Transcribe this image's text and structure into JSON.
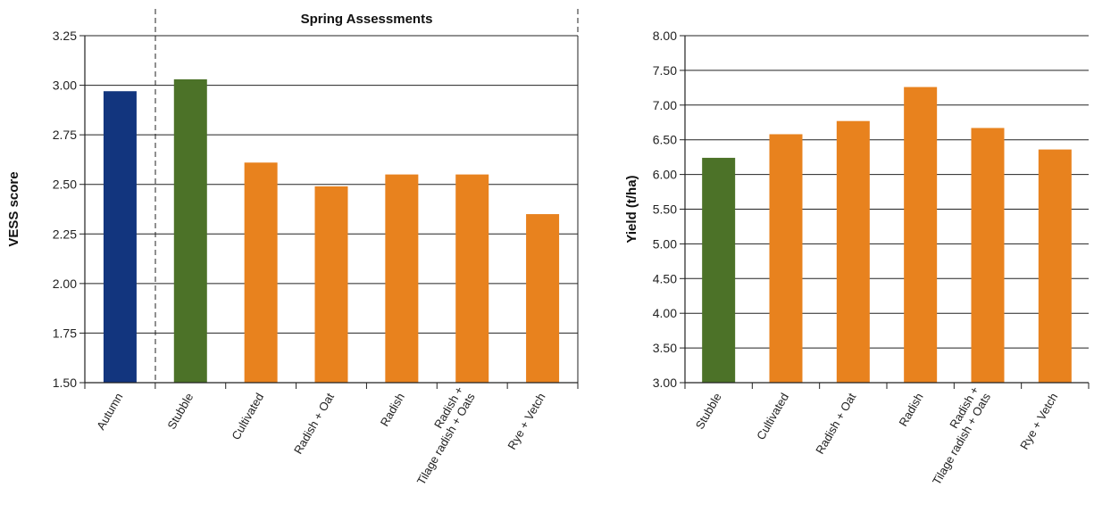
{
  "chart_data": [
    {
      "type": "bar",
      "ylabel": "VESS score",
      "xlabel": "",
      "ylim": [
        1.5,
        3.25
      ],
      "yticks": [
        "1.50",
        "1.75",
        "2.00",
        "2.25",
        "2.50",
        "2.75",
        "3.00",
        "3.25"
      ],
      "categories": [
        "Autumn",
        "Stubble",
        "Cultivated",
        "Radish + Oat",
        "Radish",
        "Radish +\nTilage radish + Oats",
        "Rye + Vetch"
      ],
      "values": [
        2.97,
        3.03,
        2.61,
        2.49,
        2.55,
        2.55,
        2.35
      ],
      "bar_colors": [
        "#12357e",
        "#4c7228",
        "#e8821e",
        "#e8821e",
        "#e8821e",
        "#e8821e",
        "#e8821e"
      ],
      "grid": true,
      "annotation": "Spring Assessments"
    },
    {
      "type": "bar",
      "ylabel": "Yield (t/ha)",
      "xlabel": "",
      "ylim": [
        3.0,
        8.0
      ],
      "yticks": [
        "3.00",
        "3.50",
        "4.00",
        "4.50",
        "5.00",
        "5.50",
        "6.00",
        "6.50",
        "7.00",
        "7.50",
        "8.00"
      ],
      "categories": [
        "Stubble",
        "Cultivated",
        "Radish + Oat",
        "Radish",
        "Radish +\nTilage radish + Oats",
        "Rye + Vetch"
      ],
      "values": [
        6.24,
        6.58,
        6.77,
        7.26,
        6.67,
        6.36
      ],
      "bar_colors": [
        "#4c7228",
        "#e8821e",
        "#e8821e",
        "#e8821e",
        "#e8821e",
        "#e8821e"
      ],
      "grid": true
    }
  ]
}
